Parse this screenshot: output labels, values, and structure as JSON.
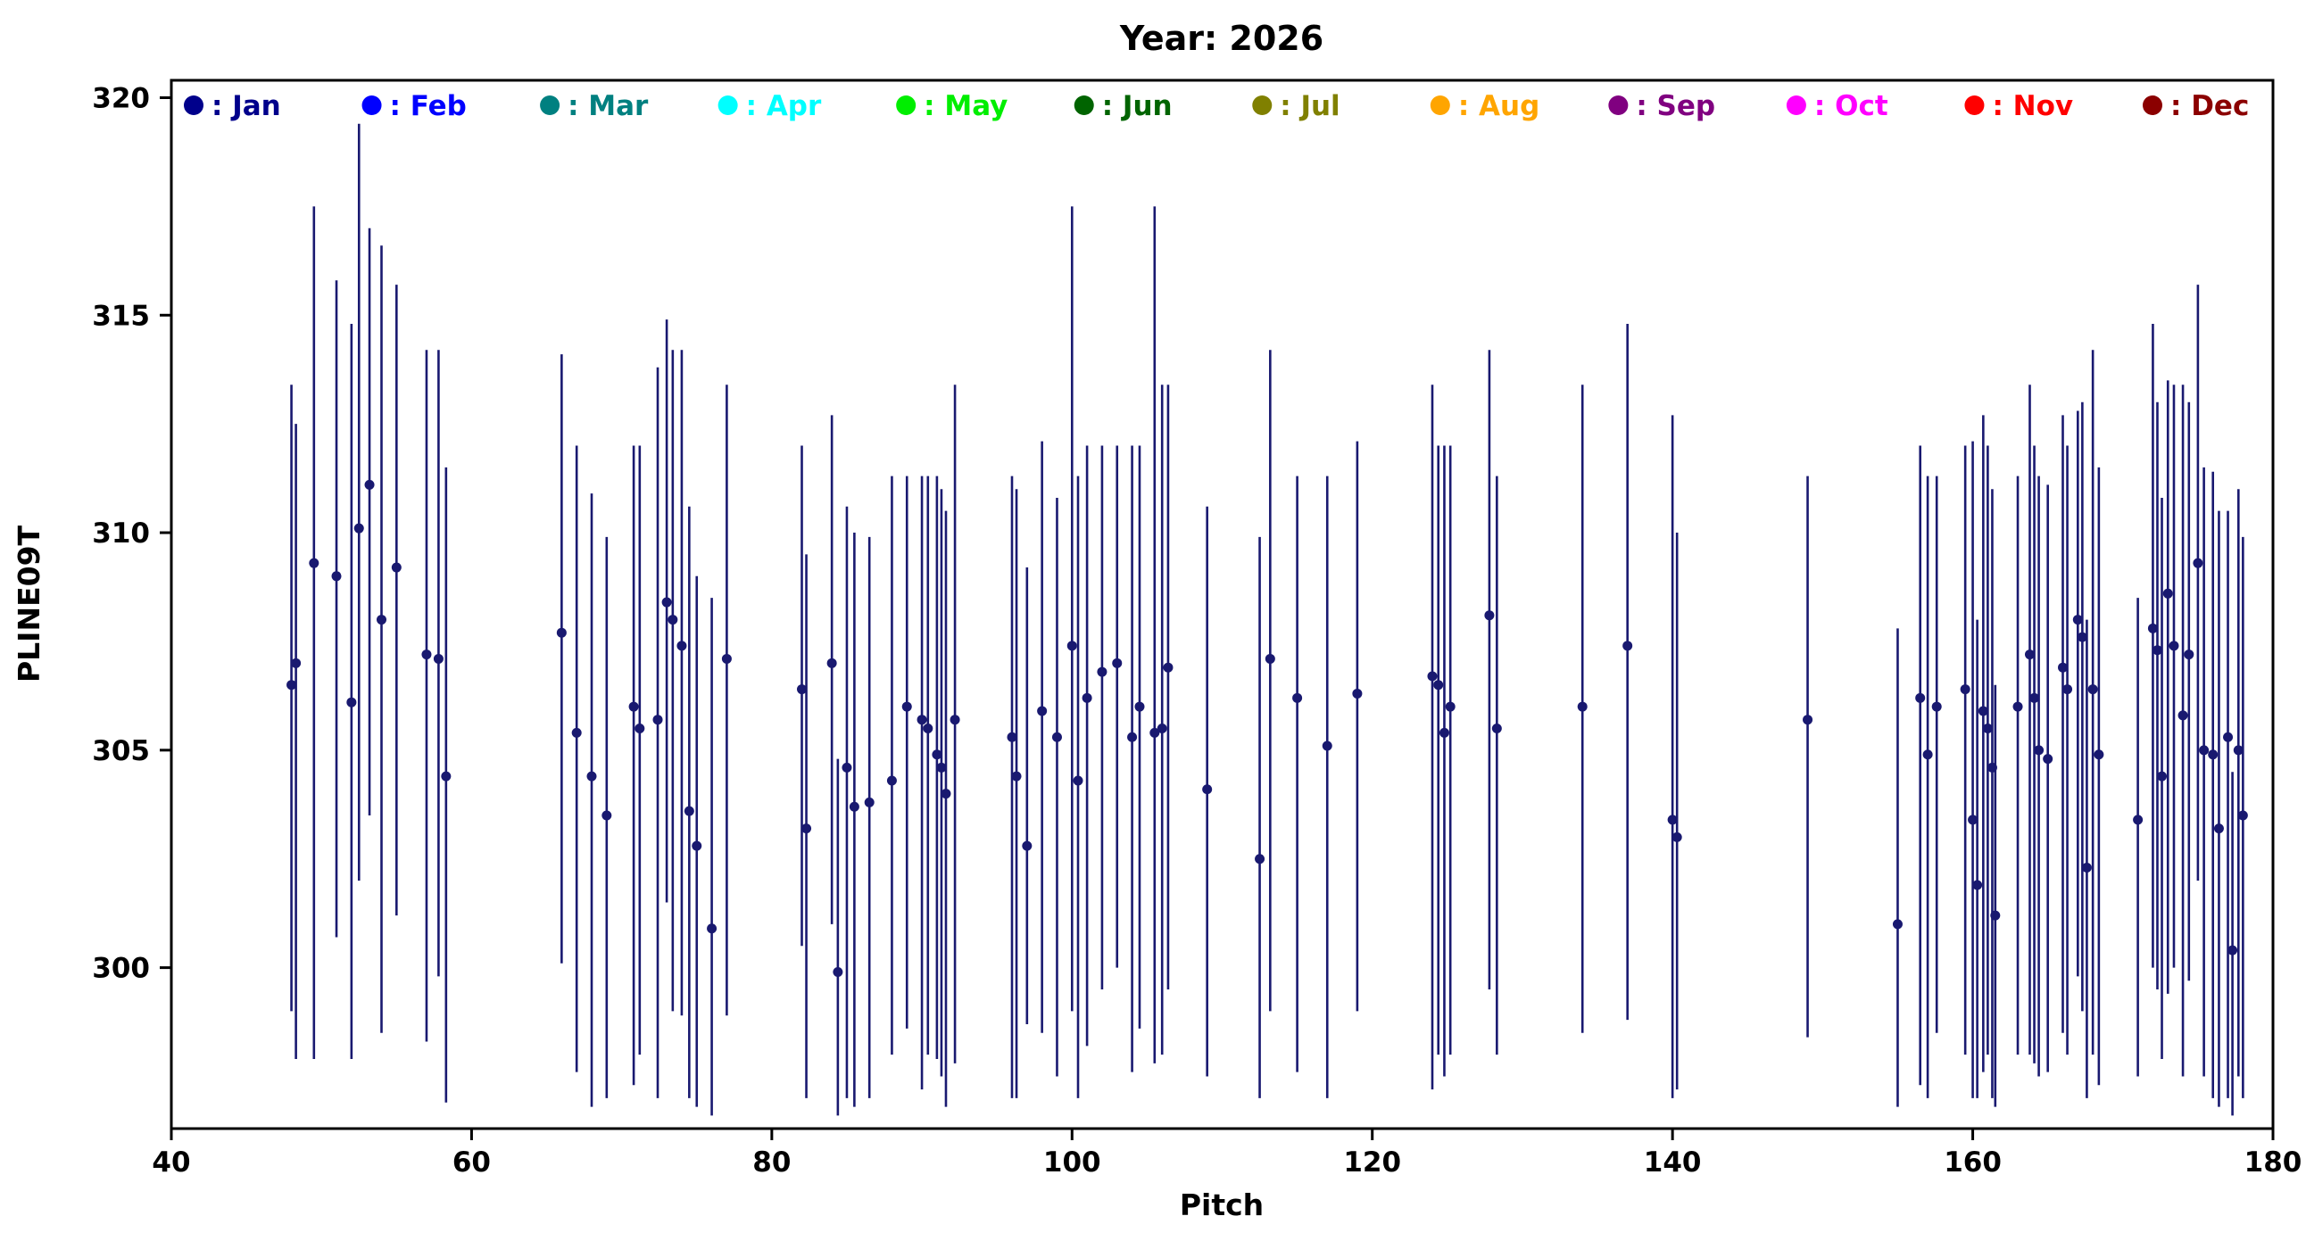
{
  "figure": {
    "background": "#ffffff"
  },
  "chart_data": {
    "type": "scatter",
    "title": "Year: 2026",
    "xlabel": "Pitch",
    "ylabel": "PLINE09T",
    "xlim": [
      40,
      180
    ],
    "ylim": [
      296.3,
      320.4
    ],
    "xticks": [
      40,
      60,
      80,
      100,
      120,
      140,
      160,
      180
    ],
    "yticks": [
      300,
      305,
      310,
      315,
      320
    ],
    "grid": false,
    "legend_position": "top-inside-row",
    "legend": [
      {
        "label": ": Jan",
        "color": "#00008B"
      },
      {
        "label": ": Feb",
        "color": "#0000FF"
      },
      {
        "label": ": Mar",
        "color": "#008080"
      },
      {
        "label": ": Apr",
        "color": "#00FFFF"
      },
      {
        "label": ": May",
        "color": "#00EE00"
      },
      {
        "label": ": Jun",
        "color": "#006400"
      },
      {
        "label": ": Jul",
        "color": "#808000"
      },
      {
        "label": ": Aug",
        "color": "#FFA500"
      },
      {
        "label": ": Sep",
        "color": "#800080"
      },
      {
        "label": ": Oct",
        "color": "#FF00FF"
      },
      {
        "label": ": Nov",
        "color": "#FF0000"
      },
      {
        "label": ": Dec",
        "color": "#8B0000"
      }
    ],
    "series": [
      {
        "name": "Jan",
        "color": "#191970",
        "marker": "circle",
        "errorbars": true,
        "points_x_y_lo_hi": [
          [
            48,
            306.5,
            299.0,
            313.4
          ],
          [
            48.3,
            307.0,
            297.9,
            312.5
          ],
          [
            49.5,
            309.3,
            297.9,
            317.5
          ],
          [
            51,
            309.0,
            300.7,
            315.8
          ],
          [
            52,
            306.1,
            297.9,
            314.8
          ],
          [
            52.5,
            310.1,
            302.0,
            319.4
          ],
          [
            53.2,
            311.1,
            303.5,
            317.0
          ],
          [
            54,
            308.0,
            298.5,
            316.6
          ],
          [
            55,
            309.2,
            301.2,
            315.7
          ],
          [
            57,
            307.2,
            298.3,
            314.2
          ],
          [
            57.8,
            307.1,
            299.8,
            314.2
          ],
          [
            58.3,
            304.4,
            296.9,
            311.5
          ],
          [
            66,
            307.7,
            300.1,
            314.1
          ],
          [
            67,
            305.4,
            297.6,
            312.0
          ],
          [
            68,
            304.4,
            296.8,
            310.9
          ],
          [
            69,
            303.5,
            297.0,
            309.9
          ],
          [
            70.8,
            306.0,
            297.3,
            312.0
          ],
          [
            71.2,
            305.5,
            298.0,
            312.0
          ],
          [
            72.4,
            305.7,
            297.0,
            313.8
          ],
          [
            73,
            308.4,
            301.5,
            314.9
          ],
          [
            73.4,
            308.0,
            299.0,
            314.2
          ],
          [
            74,
            307.4,
            298.9,
            314.2
          ],
          [
            74.5,
            303.6,
            297.0,
            310.6
          ],
          [
            75,
            302.8,
            296.8,
            309.0
          ],
          [
            76,
            300.9,
            296.6,
            308.5
          ],
          [
            77,
            307.1,
            298.9,
            313.4
          ],
          [
            82,
            306.4,
            300.5,
            312.0
          ],
          [
            82.3,
            303.2,
            297.0,
            309.5
          ],
          [
            84,
            307.0,
            301.0,
            312.7
          ],
          [
            84.4,
            299.9,
            296.6,
            304.8
          ],
          [
            85,
            304.6,
            297.0,
            310.6
          ],
          [
            85.5,
            303.7,
            296.8,
            310.0
          ],
          [
            86.5,
            303.8,
            297.0,
            309.9
          ],
          [
            88,
            304.3,
            298.0,
            311.3
          ],
          [
            89,
            306.0,
            298.6,
            311.3
          ],
          [
            90,
            305.7,
            297.2,
            311.3
          ],
          [
            90.4,
            305.5,
            298.0,
            311.3
          ],
          [
            91,
            304.9,
            297.9,
            311.3
          ],
          [
            91.3,
            304.6,
            297.5,
            311.0
          ],
          [
            91.6,
            304.0,
            296.8,
            310.5
          ],
          [
            92.2,
            305.7,
            297.8,
            313.4
          ],
          [
            96,
            305.3,
            297.0,
            311.3
          ],
          [
            96.3,
            304.4,
            297.0,
            311.0
          ],
          [
            97,
            302.8,
            298.7,
            309.2
          ],
          [
            98,
            305.9,
            298.5,
            312.1
          ],
          [
            99,
            305.3,
            297.5,
            310.8
          ],
          [
            100,
            307.4,
            299.0,
            317.5
          ],
          [
            100.4,
            304.3,
            297.0,
            311.3
          ],
          [
            101,
            306.2,
            298.2,
            312.0
          ],
          [
            102,
            306.8,
            299.5,
            312.0
          ],
          [
            103,
            307.0,
            300.0,
            312.0
          ],
          [
            104,
            305.3,
            297.6,
            312.0
          ],
          [
            104.5,
            306.0,
            298.6,
            312.0
          ],
          [
            105.5,
            305.4,
            297.8,
            317.5
          ],
          [
            106,
            305.5,
            298.0,
            313.4
          ],
          [
            106.4,
            306.9,
            299.5,
            313.4
          ],
          [
            109,
            304.1,
            297.5,
            310.6
          ],
          [
            112.5,
            302.5,
            297.0,
            309.9
          ],
          [
            113.2,
            307.1,
            299.0,
            314.2
          ],
          [
            115,
            306.2,
            297.6,
            311.3
          ],
          [
            117,
            305.1,
            297.0,
            311.3
          ],
          [
            119,
            306.3,
            299.0,
            312.1
          ],
          [
            124,
            306.7,
            297.2,
            313.4
          ],
          [
            124.4,
            306.5,
            298.0,
            312.0
          ],
          [
            124.8,
            305.4,
            297.5,
            312.0
          ],
          [
            125.2,
            306.0,
            298.0,
            312.0
          ],
          [
            127.8,
            308.1,
            299.5,
            314.2
          ],
          [
            128.3,
            305.5,
            298.0,
            311.3
          ],
          [
            134,
            306.0,
            298.5,
            313.4
          ],
          [
            137,
            307.4,
            298.8,
            314.8
          ],
          [
            140,
            303.4,
            297.0,
            312.7
          ],
          [
            140.3,
            303.0,
            297.2,
            310.0
          ],
          [
            149,
            305.7,
            298.4,
            311.3
          ],
          [
            155,
            301.0,
            296.8,
            307.8
          ],
          [
            156.5,
            306.2,
            297.3,
            312.0
          ],
          [
            157,
            304.9,
            297.0,
            311.3
          ],
          [
            157.6,
            306.0,
            298.5,
            311.3
          ],
          [
            159.5,
            306.4,
            298.0,
            312.0
          ],
          [
            160,
            303.4,
            297.0,
            312.1
          ],
          [
            160.3,
            301.9,
            297.0,
            308.0
          ],
          [
            160.7,
            305.9,
            297.6,
            312.7
          ],
          [
            161,
            305.5,
            298.0,
            312.0
          ],
          [
            161.3,
            304.6,
            297.0,
            311.0
          ],
          [
            161.5,
            301.2,
            296.8,
            306.5
          ],
          [
            163,
            306.0,
            298.0,
            311.3
          ],
          [
            163.8,
            307.2,
            298.0,
            313.4
          ],
          [
            164.1,
            306.2,
            297.8,
            312.0
          ],
          [
            164.4,
            305.0,
            297.5,
            311.3
          ],
          [
            165,
            304.8,
            297.6,
            311.1
          ],
          [
            166,
            306.9,
            298.5,
            312.7
          ],
          [
            166.3,
            306.4,
            298.0,
            312.0
          ],
          [
            167,
            308.0,
            299.8,
            312.8
          ],
          [
            167.3,
            307.6,
            299.0,
            313.0
          ],
          [
            167.6,
            302.3,
            297.0,
            308.0
          ],
          [
            168,
            306.4,
            298.0,
            314.2
          ],
          [
            168.4,
            304.9,
            297.3,
            311.5
          ],
          [
            171,
            303.4,
            297.5,
            308.5
          ],
          [
            172,
            307.8,
            300.0,
            314.8
          ],
          [
            172.3,
            307.3,
            299.5,
            313.0
          ],
          [
            172.6,
            304.4,
            297.9,
            310.8
          ],
          [
            173,
            308.6,
            299.4,
            313.5
          ],
          [
            173.4,
            307.4,
            300.0,
            313.4
          ],
          [
            174,
            305.8,
            297.5,
            313.4
          ],
          [
            174.4,
            307.2,
            299.7,
            313.0
          ],
          [
            175,
            309.3,
            302.0,
            315.7
          ],
          [
            175.4,
            305.0,
            297.5,
            311.5
          ],
          [
            176,
            304.9,
            297.0,
            311.4
          ],
          [
            176.4,
            303.2,
            296.8,
            310.5
          ],
          [
            177,
            305.3,
            297.0,
            310.5
          ],
          [
            177.3,
            300.4,
            296.6,
            304.5
          ],
          [
            177.7,
            305.0,
            297.5,
            311.0
          ],
          [
            178,
            303.5,
            297.0,
            309.9
          ]
        ]
      }
    ]
  }
}
